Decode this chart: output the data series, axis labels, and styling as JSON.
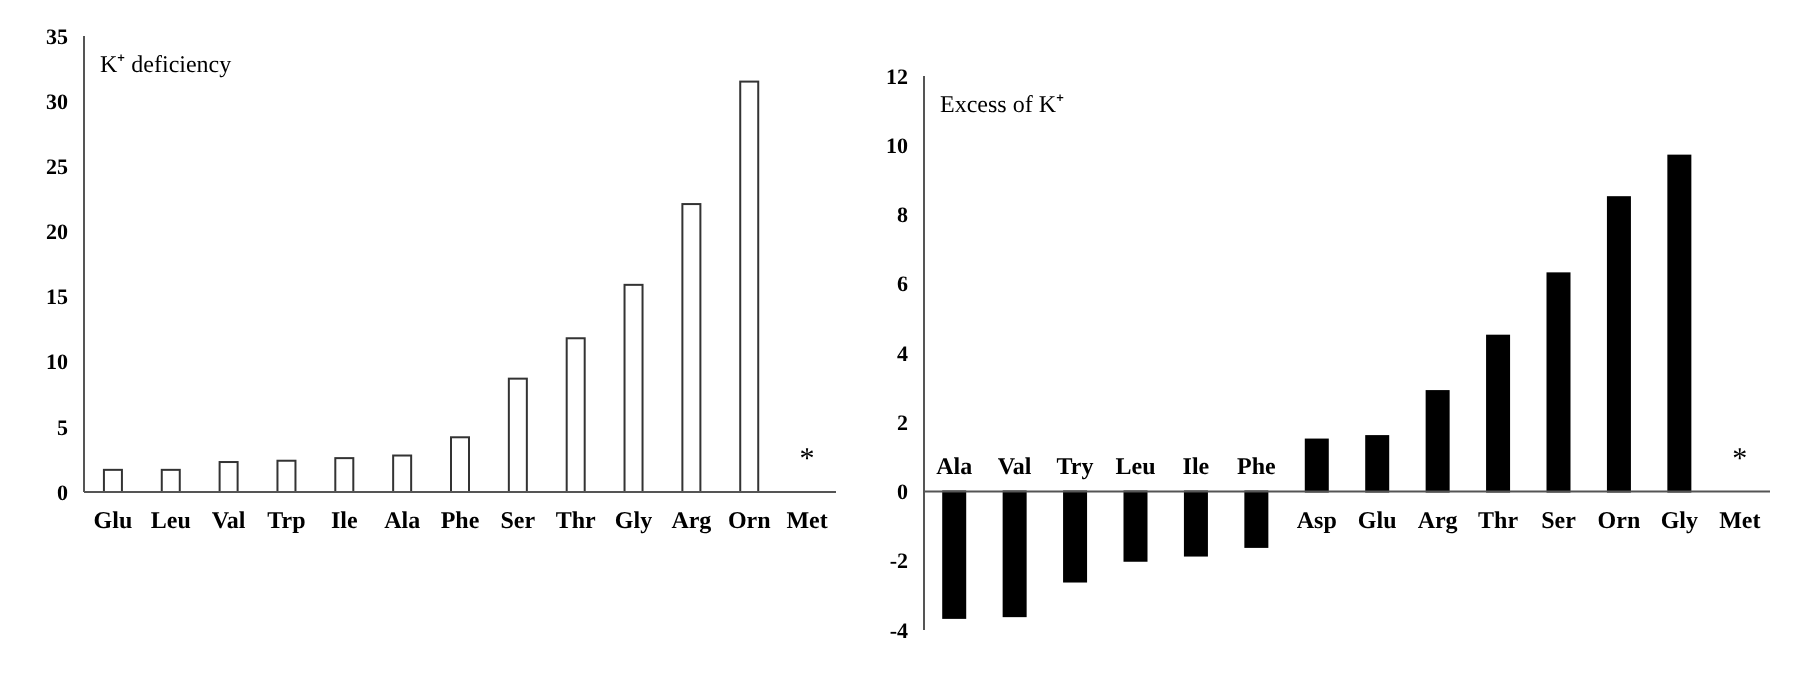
{
  "chart_data": [
    {
      "type": "bar",
      "title": "K⁺ deficiency",
      "categories": [
        "Glu",
        "Leu",
        "Val",
        "Trp",
        "Ile",
        "Ala",
        "Phe",
        "Ser",
        "Thr",
        "Gly",
        "Arg",
        "Orn",
        "Met"
      ],
      "values": [
        1.7,
        1.7,
        2.3,
        2.4,
        2.6,
        2.8,
        4.2,
        8.7,
        11.8,
        15.9,
        22.1,
        31.5,
        null
      ],
      "color": "#ffffff",
      "ylim": [
        0,
        35
      ],
      "yticks": [
        0,
        5,
        10,
        15,
        20,
        25,
        30,
        35
      ],
      "grid": false,
      "annotations": [
        "*"
      ]
    },
    {
      "type": "bar",
      "title": "Excess of K⁺",
      "categories": [
        "Ala",
        "Val",
        "Try",
        "Leu",
        "Ile",
        "Phe",
        "Asp",
        "Glu",
        "Arg",
        "Thr",
        "Ser",
        "Orn",
        "Gly",
        "Met"
      ],
      "values": [
        -3.65,
        -3.6,
        -2.6,
        -2.0,
        -1.85,
        -1.6,
        1.5,
        1.6,
        2.9,
        4.5,
        6.3,
        8.5,
        9.7,
        null
      ],
      "color": "#000000",
      "ylim": [
        -4,
        12
      ],
      "yticks": [
        -4,
        -2,
        0,
        2,
        4,
        6,
        8,
        10,
        12
      ],
      "grid": false,
      "annotations": [
        "*"
      ]
    }
  ]
}
